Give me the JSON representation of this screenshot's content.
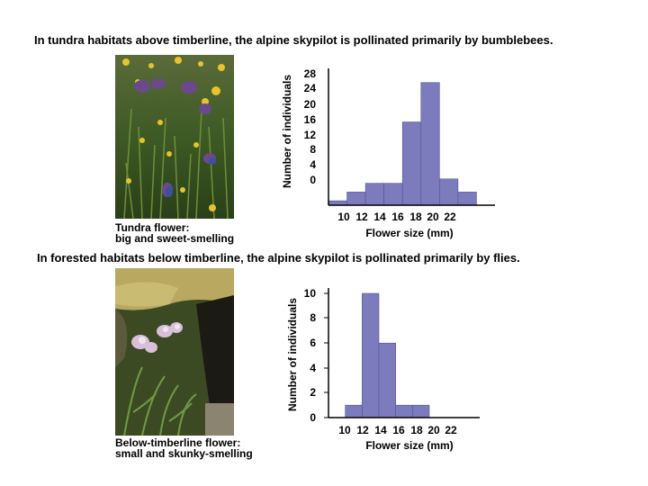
{
  "sections": [
    {
      "heading": "In tundra habitats above timberline, the alpine skypilot is pollinated primarily by bumblebees.",
      "caption_line1": "Tundra flower:",
      "caption_line2": "big and sweet-smelling",
      "photo_icon": "tundra-flower-photo"
    },
    {
      "heading": "In forested habitats below timberline, the alpine skypilot is pollinated primarily by flies.",
      "caption_line1": "Below-timberline flower:",
      "caption_line2": "small and skunky-smelling",
      "photo_icon": "forest-flower-photo"
    }
  ],
  "colors": {
    "bar": "#7b7bbd",
    "bar_stroke": "#55558f"
  },
  "chart_data": [
    {
      "type": "bar",
      "title": "",
      "xlabel": "Flower size (mm)",
      "ylabel": "Number of individuals",
      "x_tick_labels": [
        "10",
        "12",
        "14",
        "16",
        "18",
        "20",
        "22"
      ],
      "y_tick_labels": [
        "28",
        "24",
        "20",
        "16",
        "12",
        "8",
        "4",
        "0"
      ],
      "bars": [
        {
          "from": 8,
          "to": 10,
          "value": 1
        },
        {
          "from": 10,
          "to": 12,
          "value": 3
        },
        {
          "from": 12,
          "to": 14,
          "value": 5
        },
        {
          "from": 14,
          "to": 16,
          "value": 5
        },
        {
          "from": 16,
          "to": 18,
          "value": 19
        },
        {
          "from": 18,
          "to": 20,
          "value": 28
        },
        {
          "from": 20,
          "to": 22,
          "value": 6
        },
        {
          "from": 22,
          "to": 24,
          "value": 3
        }
      ],
      "xlim": [
        8,
        26
      ],
      "ylim": [
        0,
        30
      ]
    },
    {
      "type": "bar",
      "title": "",
      "xlabel": "Flower size (mm)",
      "ylabel": "Number of individuals",
      "x_tick_labels": [
        "10",
        "12",
        "14",
        "16",
        "18",
        "20",
        "22"
      ],
      "y_tick_labels": [
        "10",
        "8",
        "6",
        "4",
        "2",
        "0"
      ],
      "bars": [
        {
          "from": 10,
          "to": 12,
          "value": 1
        },
        {
          "from": 12,
          "to": 14,
          "value": 10
        },
        {
          "from": 14,
          "to": 16,
          "value": 6
        },
        {
          "from": 16,
          "to": 18,
          "value": 1
        },
        {
          "from": 18,
          "to": 20,
          "value": 1
        }
      ],
      "xlim": [
        8,
        26
      ],
      "ylim": [
        0,
        10
      ]
    }
  ]
}
